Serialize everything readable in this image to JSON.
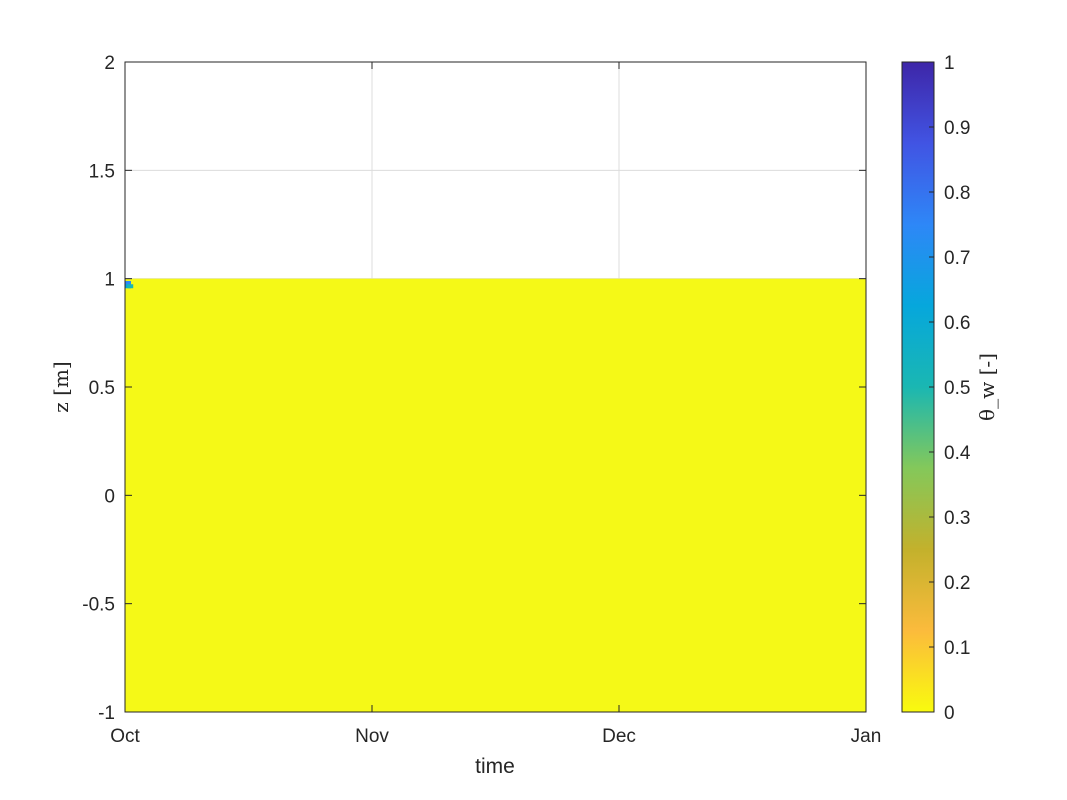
{
  "chart_data": {
    "type": "heatmap",
    "xlabel": "time",
    "ylabel": "z [m]",
    "ylim": [
      -1,
      2
    ],
    "x_ticks": [
      "Oct",
      "Nov",
      "Dec",
      "Jan"
    ],
    "y_ticks": [
      "-1",
      "-0.5",
      "0",
      "0.5",
      "1",
      "1.5",
      "2"
    ],
    "grid": true,
    "colorbar": {
      "label": "θ_w [-]",
      "range": [
        0,
        1
      ],
      "ticks": [
        "0",
        "0.1",
        "0.2",
        "0.3",
        "0.4",
        "0.5",
        "0.6",
        "0.7",
        "0.8",
        "0.9",
        "1"
      ],
      "colormap": [
        "#f9fb0e",
        "#fbbb3c",
        "#c3b12c",
        "#84c85a",
        "#1ab7b2",
        "#06a7dc",
        "#2e87f7",
        "#4154e3",
        "#3e26a8"
      ]
    },
    "field": {
      "domain_top_z": 1.0,
      "domain_bottom_z": -1.0,
      "dominant_value": 0,
      "dominant_color": "#f5f917",
      "cells": [
        {
          "t": 0.0,
          "z": 0.98,
          "value": 0.8,
          "color": "#2e87f7"
        },
        {
          "t": 0.0,
          "z": 0.965,
          "value": 0.55,
          "color": "#06a7dc"
        },
        {
          "t": 0.003,
          "z": 0.965,
          "value": 0.45,
          "color": "#1ab7b2"
        }
      ]
    }
  }
}
